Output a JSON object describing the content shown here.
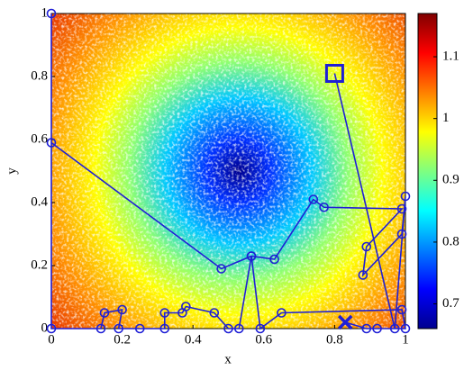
{
  "chart_data": {
    "type": "line",
    "xlabel": "x",
    "ylabel": "y",
    "x": [
      0.8,
      0.97,
      1.0,
      0.99,
      0.88,
      0.89,
      0.99,
      0.77,
      0.74,
      0.63,
      0.565,
      0.48,
      0.0,
      0.0,
      0.0,
      0.14,
      0.15,
      0.2,
      0.19,
      0.25,
      0.32,
      0.32,
      0.37,
      0.38,
      0.46,
      0.5,
      0.53,
      0.565,
      0.59,
      0.65,
      0.99,
      1.0,
      0.92,
      0.89,
      0.83
    ],
    "values": [
      0.81,
      0.0,
      0.42,
      0.3,
      0.17,
      0.26,
      0.38,
      0.385,
      0.41,
      0.22,
      0.23,
      0.19,
      0.59,
      1.0,
      0.0,
      0.0,
      0.05,
      0.06,
      0.0,
      0.0,
      0.0,
      0.05,
      0.05,
      0.07,
      0.05,
      0.0,
      0.0,
      0.23,
      0.0,
      0.05,
      0.06,
      0.0,
      0.0,
      0.0,
      0.02
    ],
    "color": "#1f1fd6",
    "xlim": [
      0,
      1
    ],
    "xticks": [
      0,
      0.2,
      0.4,
      0.6,
      0.8,
      1
    ],
    "ylim": [
      0,
      1
    ],
    "yticks": [
      0,
      0.2,
      0.4,
      0.6,
      0.8,
      1
    ],
    "colorbar": {
      "lim": [
        0.66,
        1.17
      ],
      "ticks": [
        0.7,
        0.8,
        0.9,
        1,
        1.1
      ]
    }
  }
}
